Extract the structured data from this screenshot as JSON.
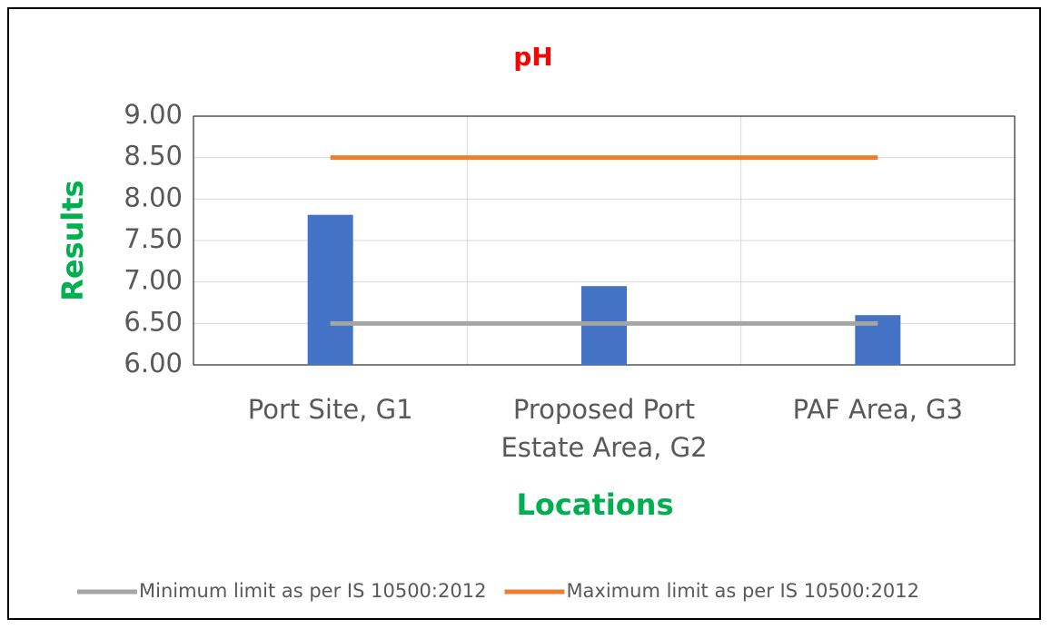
{
  "chart_data": {
    "type": "bar",
    "title": "pH",
    "x_label": "Locations",
    "y_label": "Results",
    "categories": [
      "Port Site, G1",
      "Proposed Port Estate Area, G2",
      "PAF Area, G3"
    ],
    "values": [
      7.81,
      6.95,
      6.6
    ],
    "color": "#4472c4",
    "series": [
      {
        "name": "Minimum limit as per IS 10500:2012",
        "color": "#a5a5a5",
        "type": "line",
        "values": [
          6.5,
          6.5,
          6.5
        ]
      },
      {
        "name": "Maximum limit as per IS 10500:2012",
        "color": "#ed7d31",
        "type": "line",
        "values": [
          8.5,
          8.5,
          8.5
        ]
      }
    ],
    "ylim": [
      6,
      9
    ],
    "yticks": [
      {
        "value": 6,
        "label": "6.00"
      },
      {
        "value": 6.5,
        "label": "6.50"
      },
      {
        "value": 7,
        "label": "7.00"
      },
      {
        "value": 7.5,
        "label": "7.50"
      },
      {
        "value": 8,
        "label": "8.00"
      },
      {
        "value": 8.5,
        "label": "8.50"
      },
      {
        "value": 9,
        "label": "9.00"
      }
    ],
    "grid": true,
    "legend": "bottom"
  }
}
